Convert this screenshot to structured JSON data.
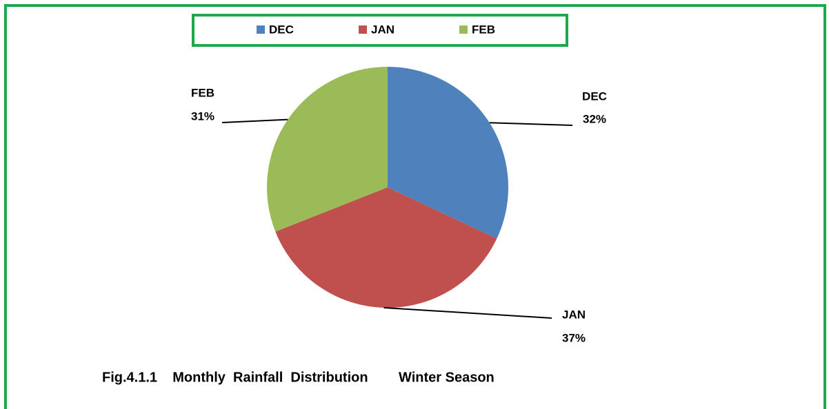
{
  "chart_data": {
    "type": "pie",
    "title": "Fig.4.1.1    Monthly  Rainfall  Distribution        Winter Season",
    "categories": [
      "DEC",
      "JAN",
      "FEB"
    ],
    "values": [
      32,
      37,
      31
    ],
    "value_labels": [
      "32%",
      "37%",
      "31%"
    ],
    "colors": [
      "#4f81bd",
      "#c0504d",
      "#9bbb59"
    ],
    "legend": "top"
  }
}
